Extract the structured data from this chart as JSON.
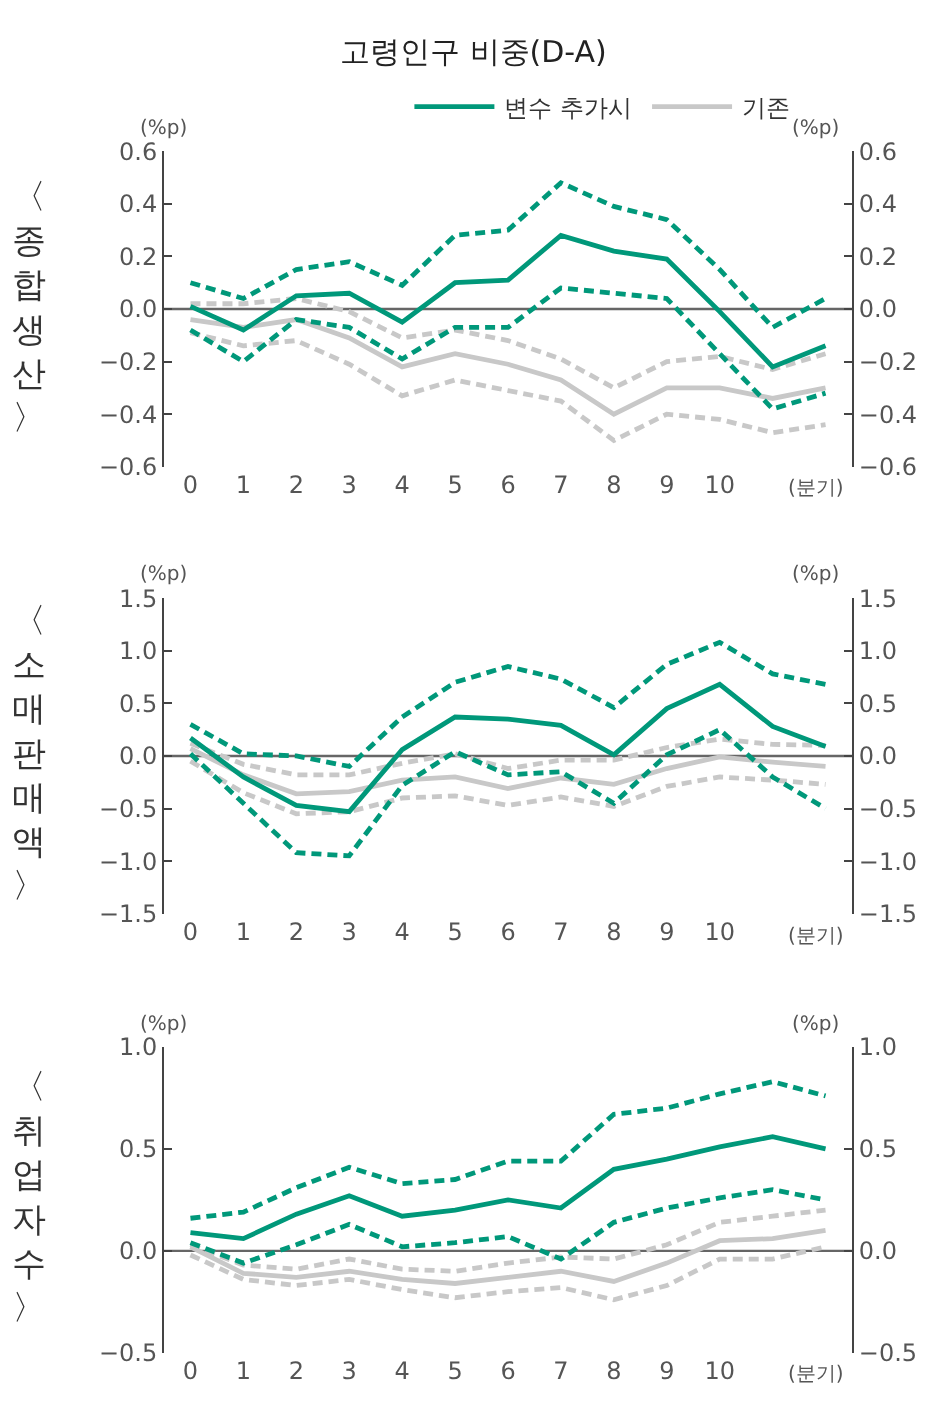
{
  "chart_data": [
    {
      "type": "line",
      "title": "고령인구 비중(D-A)",
      "subtitle": "〈종합생산〉",
      "ylabel": "(%p)",
      "y2label": "(%p)",
      "xlabel": "(분기)",
      "legend": "top",
      "grid": false,
      "categories": [
        "0",
        "1",
        "2",
        "3",
        "4",
        "5",
        "6",
        "7",
        "8",
        "9",
        "10",
        null,
        null
      ],
      "ylim": [
        -0.6,
        0.6
      ],
      "yticks": [
        {
          "value": 0.6,
          "label": "0.6"
        },
        {
          "value": 0.4,
          "label": "0.4"
        },
        {
          "value": 0.2,
          "label": "0.2"
        },
        {
          "value": 0,
          "label": "0.0"
        },
        {
          "value": -0.2,
          "label": "−0.2"
        },
        {
          "value": -0.4,
          "label": "−0.4"
        },
        {
          "value": -0.6,
          "label": "−0.6"
        }
      ],
      "y2lim": [
        -0.6,
        0.6
      ],
      "y2ticks": [
        {
          "value": 0.6,
          "label": "0.6"
        },
        {
          "value": 0.4,
          "label": "0.4"
        },
        {
          "value": 0.2,
          "label": "0.2"
        },
        {
          "value": 0,
          "label": "0.0"
        },
        {
          "value": -0.2,
          "label": "−0.2"
        },
        {
          "value": -0.4,
          "label": "−0.4"
        },
        {
          "value": -0.6,
          "label": "−0.6"
        }
      ],
      "ref_lines": [
        {
          "axis": "y",
          "value": 0,
          "color": "#666666"
        }
      ],
      "series": [
        {
          "name": "기존",
          "color": "#c8c8c8",
          "line_style": "solid",
          "values": [
            -0.04,
            -0.07,
            -0.04,
            -0.11,
            -0.22,
            -0.17,
            -0.21,
            -0.27,
            -0.4,
            -0.3,
            -0.3,
            -0.34,
            -0.3
          ]
        },
        {
          "color": "#c8c8c8",
          "line_style": "dashed",
          "values": [
            0.02,
            0.02,
            0.04,
            -0.01,
            -0.11,
            -0.08,
            -0.12,
            -0.19,
            -0.3,
            -0.2,
            -0.18,
            -0.23,
            -0.17
          ]
        },
        {
          "color": "#c8c8c8",
          "line_style": "dashed",
          "values": [
            -0.09,
            -0.14,
            -0.12,
            -0.21,
            -0.33,
            -0.27,
            -0.31,
            -0.35,
            -0.5,
            -0.4,
            -0.42,
            -0.47,
            -0.44
          ]
        },
        {
          "name": "변수 추가시",
          "color": "#00987a",
          "line_style": "solid",
          "values": [
            0.01,
            -0.08,
            0.05,
            0.06,
            -0.05,
            0.1,
            0.11,
            0.28,
            0.22,
            0.19,
            -0.01,
            -0.22,
            -0.14
          ]
        },
        {
          "color": "#00987a",
          "line_style": "dashed",
          "values": [
            0.1,
            0.04,
            0.15,
            0.18,
            0.09,
            0.28,
            0.3,
            0.48,
            0.39,
            0.34,
            0.15,
            -0.07,
            0.04
          ]
        },
        {
          "color": "#00987a",
          "line_style": "dashed",
          "values": [
            -0.08,
            -0.2,
            -0.04,
            -0.07,
            -0.19,
            -0.07,
            -0.07,
            0.08,
            0.06,
            0.04,
            -0.17,
            -0.38,
            -0.32
          ]
        }
      ]
    },
    {
      "type": "line",
      "subtitle": "〈소매판매액〉",
      "ylabel": "(%p)",
      "y2label": "(%p)",
      "xlabel": "(분기)",
      "grid": false,
      "categories": [
        "0",
        "1",
        "2",
        "3",
        "4",
        "5",
        "6",
        "7",
        "8",
        "9",
        "10",
        null,
        null
      ],
      "ylim": [
        -1.5,
        1.5
      ],
      "yticks": [
        {
          "value": 1.5,
          "label": "1.5"
        },
        {
          "value": 1,
          "label": "1.0"
        },
        {
          "value": 0.5,
          "label": "0.5"
        },
        {
          "value": 0,
          "label": "0.0"
        },
        {
          "value": -0.5,
          "label": "−0.5"
        },
        {
          "value": -1,
          "label": "−1.0"
        },
        {
          "value": -1.5,
          "label": "−1.5"
        }
      ],
      "y2lim": [
        -1.5,
        1.5
      ],
      "y2ticks": [
        {
          "value": 1.5,
          "label": "1.5"
        },
        {
          "value": 1,
          "label": "1.0"
        },
        {
          "value": 0.5,
          "label": "0.5"
        },
        {
          "value": 0,
          "label": "0.0"
        },
        {
          "value": -0.5,
          "label": "−0.5"
        },
        {
          "value": -1,
          "label": "−1.0"
        },
        {
          "value": -1.5,
          "label": "−1.5"
        }
      ],
      "ref_lines": [
        {
          "axis": "y",
          "value": 0,
          "color": "#666666"
        }
      ],
      "series": [
        {
          "color": "#c8c8c8",
          "line_style": "solid",
          "values": [
            0.07,
            -0.18,
            -0.36,
            -0.34,
            -0.23,
            -0.2,
            -0.31,
            -0.21,
            -0.27,
            -0.12,
            -0.01,
            -0.06,
            -0.1
          ]
        },
        {
          "color": "#c8c8c8",
          "line_style": "dashed",
          "values": [
            0.12,
            -0.08,
            -0.18,
            -0.18,
            -0.07,
            0.02,
            -0.12,
            -0.04,
            -0.04,
            0.08,
            0.16,
            0.11,
            0.1
          ]
        },
        {
          "color": "#c8c8c8",
          "line_style": "dashed",
          "values": [
            -0.05,
            -0.35,
            -0.55,
            -0.53,
            -0.4,
            -0.38,
            -0.47,
            -0.39,
            -0.48,
            -0.29,
            -0.2,
            -0.23,
            -0.27
          ]
        },
        {
          "color": "#00987a",
          "line_style": "solid",
          "values": [
            0.17,
            -0.2,
            -0.47,
            -0.53,
            0.06,
            0.37,
            0.35,
            0.29,
            0.01,
            0.45,
            0.68,
            0.28,
            0.09
          ]
        },
        {
          "color": "#00987a",
          "line_style": "dashed",
          "values": [
            0.3,
            0.02,
            0.0,
            -0.1,
            0.37,
            0.7,
            0.85,
            0.73,
            0.46,
            0.87,
            1.08,
            0.78,
            0.68
          ]
        },
        {
          "color": "#00987a",
          "line_style": "dashed",
          "values": [
            0.02,
            -0.45,
            -0.92,
            -0.95,
            -0.28,
            0.04,
            -0.18,
            -0.15,
            -0.45,
            0.01,
            0.25,
            -0.2,
            -0.5
          ]
        }
      ]
    },
    {
      "type": "line",
      "subtitle": "〈취업자수〉",
      "ylabel": "(%p)",
      "y2label": "(%p)",
      "xlabel": "(분기)",
      "grid": false,
      "categories": [
        "0",
        "1",
        "2",
        "3",
        "4",
        "5",
        "6",
        "7",
        "8",
        "9",
        "10",
        null,
        null
      ],
      "ylim": [
        -0.5,
        1.0
      ],
      "yticks": [
        {
          "value": 1,
          "label": "1.0"
        },
        {
          "value": 0.5,
          "label": "0.5"
        },
        {
          "value": 0,
          "label": "0.0"
        },
        {
          "value": -0.5,
          "label": "−0.5"
        }
      ],
      "y2lim": [
        -0.5,
        1.0
      ],
      "y2ticks": [
        {
          "value": 1,
          "label": "1.0"
        },
        {
          "value": 0.5,
          "label": "0.5"
        },
        {
          "value": 0,
          "label": "0.0"
        },
        {
          "value": -0.5,
          "label": "−0.5"
        }
      ],
      "ref_lines": [
        {
          "axis": "y",
          "value": 0,
          "color": "#666666"
        }
      ],
      "series": [
        {
          "color": "#c8c8c8",
          "line_style": "solid",
          "values": [
            0.02,
            -0.11,
            -0.13,
            -0.1,
            -0.14,
            -0.16,
            -0.13,
            -0.1,
            -0.15,
            -0.06,
            0.05,
            0.06,
            0.1
          ]
        },
        {
          "color": "#c8c8c8",
          "line_style": "dashed",
          "values": [
            0.03,
            -0.07,
            -0.09,
            -0.04,
            -0.09,
            -0.1,
            -0.06,
            -0.03,
            -0.04,
            0.03,
            0.14,
            0.17,
            0.2
          ]
        },
        {
          "color": "#c8c8c8",
          "line_style": "dashed",
          "values": [
            -0.02,
            -0.14,
            -0.17,
            -0.14,
            -0.19,
            -0.23,
            -0.2,
            -0.18,
            -0.24,
            -0.17,
            -0.04,
            -0.04,
            0.02
          ]
        },
        {
          "color": "#00987a",
          "line_style": "solid",
          "values": [
            0.09,
            0.06,
            0.18,
            0.27,
            0.17,
            0.2,
            0.25,
            0.21,
            0.4,
            0.45,
            0.51,
            0.56,
            0.5
          ]
        },
        {
          "color": "#00987a",
          "line_style": "dashed",
          "values": [
            0.16,
            0.19,
            0.31,
            0.41,
            0.33,
            0.35,
            0.44,
            0.44,
            0.67,
            0.7,
            0.77,
            0.83,
            0.76
          ]
        },
        {
          "color": "#00987a",
          "line_style": "dashed",
          "values": [
            0.04,
            -0.06,
            0.03,
            0.13,
            0.02,
            0.04,
            0.07,
            -0.04,
            0.14,
            0.21,
            0.26,
            0.3,
            0.25
          ]
        }
      ]
    }
  ]
}
